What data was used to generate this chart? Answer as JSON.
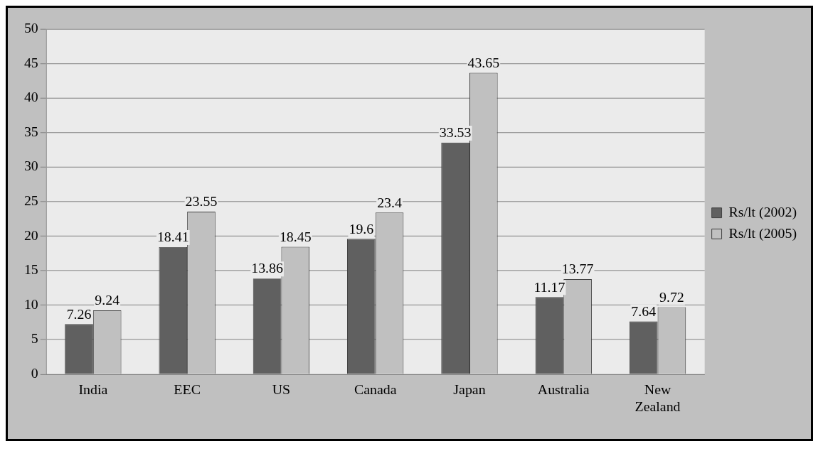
{
  "chart_data": {
    "type": "bar",
    "categories": [
      "India",
      "EEC",
      "US",
      "Canada",
      "Japan",
      "Australia",
      "New Zealand"
    ],
    "series": [
      {
        "name": "Rs/lt (2002)",
        "color": "#606060",
        "values": [
          7.26,
          18.41,
          13.86,
          19.6,
          33.53,
          11.17,
          7.64
        ]
      },
      {
        "name": "Rs/lt (2005)",
        "color": "#c0c0c0",
        "values": [
          9.24,
          23.55,
          18.45,
          23.4,
          43.65,
          13.77,
          9.72
        ]
      }
    ],
    "ylim": [
      0,
      50
    ],
    "yticks": [
      0,
      5,
      10,
      15,
      20,
      25,
      30,
      35,
      40,
      45,
      50
    ],
    "grid": "y",
    "legend": "right",
    "data_labels": true
  }
}
